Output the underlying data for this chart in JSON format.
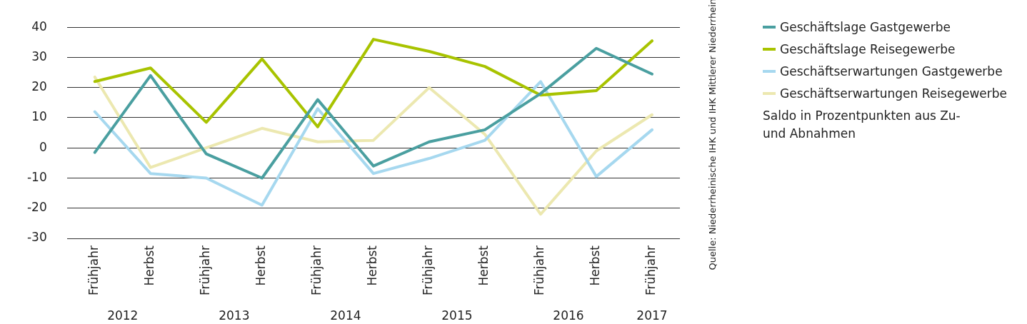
{
  "chart_data": {
    "type": "line",
    "categories": [
      "Frühjahr",
      "Herbst",
      "Frühjahr",
      "Herbst",
      "Frühjahr",
      "Herbst",
      "Frühjahr",
      "Herbst",
      "Frühjahr",
      "Herbst",
      "Frühjahr"
    ],
    "series": [
      {
        "name": "Geschäftslage Gastgewerbe",
        "color": "#4a9fa0",
        "values": [
          -1.5,
          24,
          -2,
          -10,
          16,
          -6,
          2,
          6,
          18,
          33,
          24.5
        ]
      },
      {
        "name": "Geschäftslage Reisegewerbe",
        "color": "#a8c300",
        "values": [
          22,
          26.5,
          8.5,
          29.5,
          7,
          36,
          32,
          27,
          17.5,
          19,
          35.5
        ]
      },
      {
        "name": "Geschäftserwartungen Gastgewerbe",
        "color": "#a6d8ef",
        "values": [
          12,
          -8.5,
          -10,
          -19,
          13,
          -8.5,
          -3.5,
          2.5,
          22,
          -9.5,
          6
        ]
      },
      {
        "name": "Geschäftserwartungen Reisegewerbe",
        "color": "#ece8b0",
        "values": [
          23.5,
          -6.5,
          0,
          6.5,
          2,
          2.5,
          20,
          4.5,
          -22,
          -1,
          11
        ]
      }
    ],
    "ylim": [
      -30,
      40
    ],
    "yticks": [
      -30,
      -20,
      -10,
      0,
      10,
      20,
      30,
      40
    ],
    "grid": "y",
    "legend": "right",
    "marker": "none",
    "line_style": "solid",
    "annotations": [
      "2012",
      "2013",
      "2014",
      "2015",
      "2016",
      "2017",
      "Saldo in Prozentpunkten aus Zu- und Abnahmen",
      "Quelle: Niederrheinische IHK und IHK Mittlerer Niederrhein"
    ]
  }
}
